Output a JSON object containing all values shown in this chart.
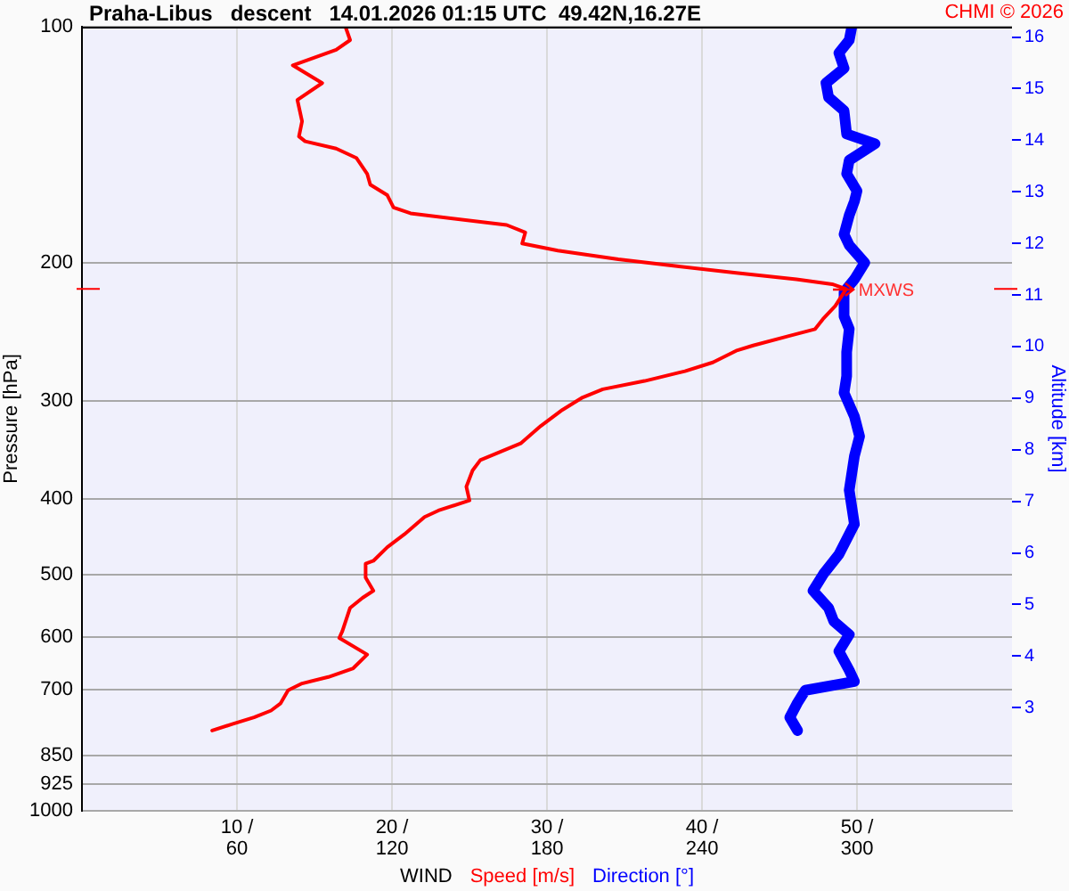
{
  "chart_data": {
    "type": "line",
    "orientation": "horizontal",
    "title": "Praha-Libus   descent   14.01.2026 01:15 UTC  49.42N,16.27E",
    "xlabel": "WIND",
    "ylabel": "Pressure [hPa]",
    "y2label": "Altitude [km]",
    "annotations": [
      "CHMI © 2026",
      {
        "text": "MXWS",
        "x": 49.3,
        "y": 216
      }
    ],
    "series": [
      {
        "name": "Speed [m/s]",
        "color": "#ff0000",
        "x": [
          100,
          104,
          107,
          112,
          118,
          124,
          132,
          138,
          140,
          143,
          147,
          154,
          159,
          164,
          170,
          173,
          179,
          183,
          189,
          193,
          198,
          202,
          206,
          210,
          213,
          216,
          227,
          236,
          243,
          248,
          255,
          259,
          268,
          275,
          283,
          290,
          297,
          308,
          323,
          340,
          357,
          368,
          386,
          402,
          414,
          422,
          444,
          461,
          480,
          484,
          504,
          524,
          535,
          551,
          590,
          602,
          632,
          658,
          675,
          688,
          702,
          730,
          745,
          760,
          775,
          790
        ],
        "values": [
          17.0,
          17.3,
          16.4,
          13.6,
          15.5,
          13.9,
          14.2,
          14.0,
          14.4,
          16.4,
          17.7,
          18.4,
          18.6,
          19.7,
          20.1,
          21.2,
          27.4,
          28.6,
          28.4,
          30.7,
          34.6,
          38.4,
          42.2,
          46.1,
          48.4,
          49.3,
          48.6,
          47.8,
          47.3,
          45.6,
          43.3,
          42.2,
          40.7,
          38.9,
          36.3,
          33.6,
          32.3,
          31.0,
          29.6,
          28.3,
          25.7,
          25.2,
          24.8,
          25.0,
          23.0,
          22.1,
          20.8,
          19.7,
          18.8,
          18.3,
          18.3,
          18.8,
          18.1,
          17.3,
          16.8,
          16.6,
          18.4,
          17.5,
          15.9,
          14.2,
          13.3,
          12.8,
          12.2,
          11.1,
          9.7,
          8.4
        ]
      },
      {
        "name": "Direction [°]",
        "color": "#0000ff",
        "axis": "x2",
        "x": [
          100,
          104,
          108,
          113,
          118,
          123,
          128,
          137,
          141,
          148,
          154,
          162,
          167,
          174,
          184,
          190,
          200,
          210,
          218,
          234,
          243,
          260,
          279,
          293,
          314,
          333,
          353,
          390,
          431,
          471,
          499,
          524,
          551,
          573,
          596,
          626,
          662,
          684,
          702,
          728,
          760,
          790
        ],
        "values": [
          298,
          297,
          293,
          295,
          288,
          289,
          295,
          296,
          307,
          297,
          296,
          300,
          299,
          297,
          295,
          297,
          303,
          299,
          295,
          295,
          297,
          296,
          296,
          295,
          299,
          301,
          299,
          297,
          299,
          293,
          287,
          283,
          289,
          291,
          297,
          293,
          297,
          299,
          280,
          277,
          274,
          277
        ]
      }
    ],
    "xlim": [
      0,
      60
    ],
    "xticks": [
      {
        "value": 10,
        "label": "10 /"
      },
      {
        "value": 20,
        "label": "20 /"
      },
      {
        "value": 30,
        "label": "30 /"
      },
      {
        "value": 40,
        "label": "40 /"
      },
      {
        "value": 50,
        "label": "50 /"
      }
    ],
    "x2lim": [
      0,
      360
    ],
    "x2ticks": [
      60,
      120,
      180,
      240,
      300
    ],
    "ylim": [
      1000,
      100
    ],
    "yticks": [
      100,
      200,
      300,
      400,
      500,
      600,
      700,
      850,
      925,
      1000
    ],
    "log": "y",
    "y2lim": [
      1.0,
      16.2
    ],
    "y2ticks": [
      3,
      4,
      5,
      6,
      7,
      8,
      9,
      10,
      11,
      12,
      13,
      14,
      15,
      16
    ],
    "grid": true,
    "legend": "bottom",
    "marker": "none",
    "line_style": "solid"
  }
}
